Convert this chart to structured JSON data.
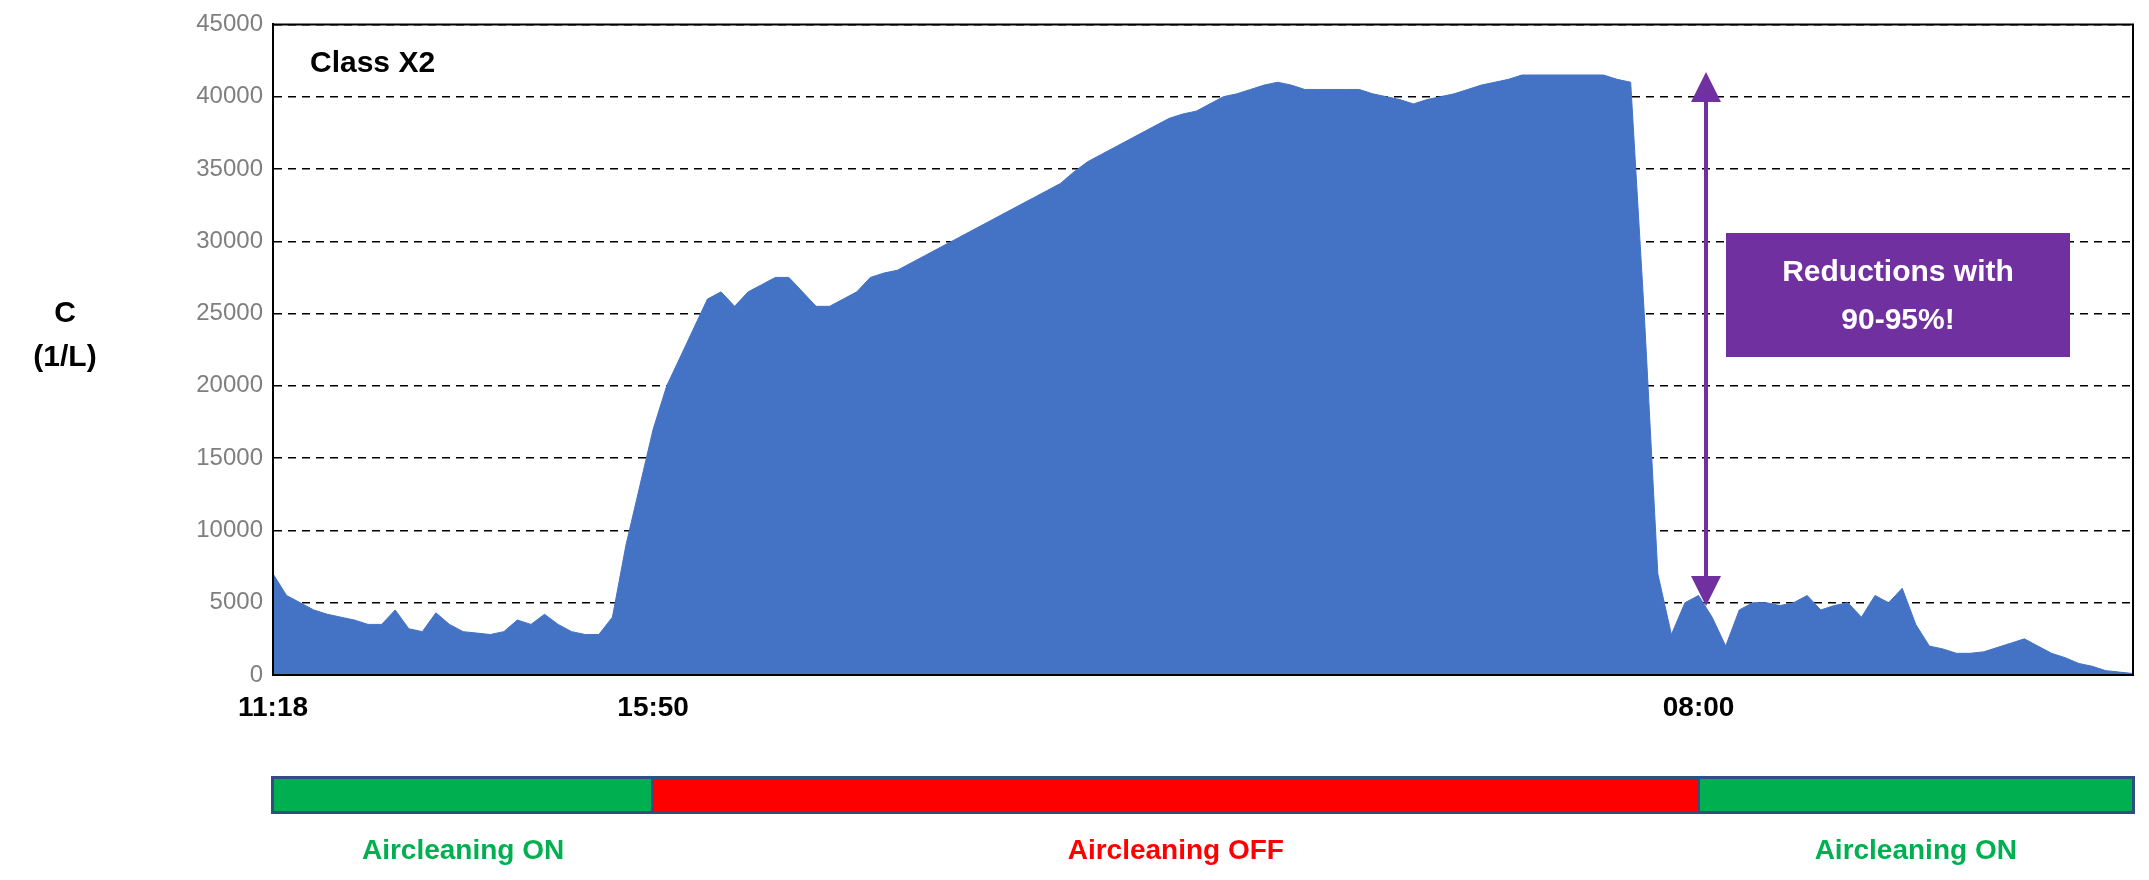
{
  "chart_data": {
    "type": "area",
    "ylabel": "C (1/L)",
    "categories": [
      "11:18",
      null,
      null,
      null,
      null,
      null,
      null,
      null,
      null,
      null,
      null,
      null,
      null,
      null,
      null,
      null,
      null,
      null,
      null,
      null,
      null,
      null,
      null,
      null,
      null,
      null,
      null,
      null,
      "15:50",
      null,
      null,
      null,
      null,
      null,
      null,
      null,
      null,
      null,
      null,
      null,
      null,
      null,
      null,
      null,
      null,
      null,
      null,
      null,
      null,
      null,
      null,
      null,
      null,
      null,
      null,
      null,
      null,
      null,
      null,
      null,
      null,
      null,
      null,
      null,
      null,
      null,
      null,
      null,
      null,
      null,
      null,
      null,
      null,
      null,
      null,
      null,
      null,
      null,
      null,
      null,
      null,
      null,
      null,
      null,
      null,
      null,
      null,
      null,
      null,
      null,
      null,
      null,
      null,
      null,
      null,
      null,
      null,
      null,
      null,
      null,
      null,
      null,
      null,
      null,
      null,
      "08:00",
      null,
      null,
      null,
      null,
      null,
      null,
      null,
      null,
      null,
      null,
      null,
      null,
      null,
      null,
      null,
      null,
      null,
      null,
      null,
      null,
      null,
      null,
      null,
      null,
      null,
      null,
      null,
      null,
      null,
      null,
      null,
      null
    ],
    "series": [
      {
        "color": "#4472c4",
        "values": [
          7000,
          5500,
          5000,
          4500,
          4200,
          4000,
          3800,
          3500,
          3500,
          4500,
          3200,
          3000,
          4300,
          3500,
          3000,
          2900,
          2800,
          3000,
          3800,
          3500,
          4200,
          3500,
          3000,
          2800,
          2800,
          4000,
          9000,
          13000,
          17000,
          20000,
          22000,
          24000,
          26000,
          26500,
          25500,
          26500,
          27000,
          27500,
          27500,
          26500,
          25500,
          25500,
          26000,
          26500,
          27500,
          27800,
          28000,
          28500,
          29000,
          29500,
          30000,
          30500,
          31000,
          31500,
          32000,
          32500,
          33000,
          33500,
          34000,
          34800,
          35500,
          36000,
          36500,
          37000,
          37500,
          38000,
          38500,
          38800,
          39000,
          39500,
          40000,
          40200,
          40500,
          40800,
          41000,
          40800,
          40500,
          40500,
          40500,
          40500,
          40500,
          40200,
          40000,
          39800,
          39500,
          39800,
          40000,
          40200,
          40500,
          40800,
          41000,
          41200,
          41500,
          41500,
          41500,
          41500,
          41500,
          41500,
          41500,
          41200,
          41000,
          25000,
          7000,
          2800,
          5000,
          5500,
          4000,
          2000,
          4500,
          5000,
          5000,
          4800,
          5000,
          5500,
          4500,
          4800,
          5000,
          4000,
          5500,
          5000,
          6000,
          3500,
          2000,
          1800,
          1500,
          1500,
          1600,
          1900,
          2200,
          2500,
          2000,
          1500,
          1200,
          800,
          600,
          300,
          200,
          100
        ]
      }
    ],
    "ylim": [
      0,
      45000
    ],
    "yticks": [
      0,
      5000,
      10000,
      15000,
      20000,
      25000,
      30000,
      35000,
      40000,
      45000
    ],
    "grid": "y",
    "legend": false,
    "annotations": [
      "Class X2",
      "Reductions with 90-95%!",
      "Aircleaning ON",
      "Aircleaning OFF",
      "Aircleaning ON"
    ]
  }
}
